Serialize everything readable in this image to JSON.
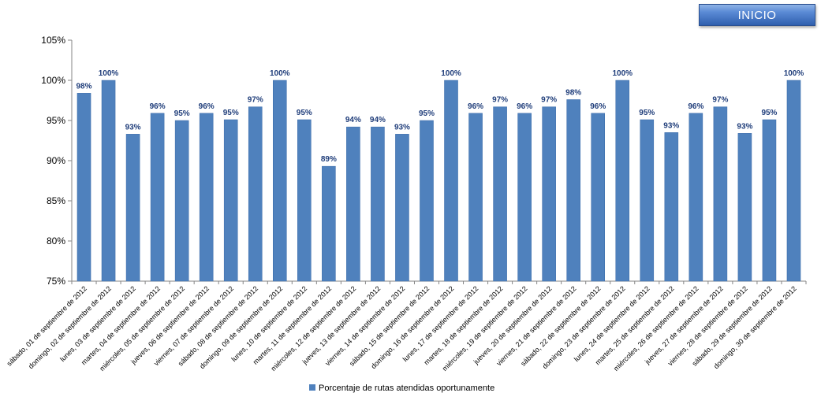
{
  "button": {
    "label": "INICIO"
  },
  "chart_data": {
    "type": "bar",
    "title": "",
    "xlabel": "",
    "ylabel": "",
    "ylim": [
      75,
      105
    ],
    "yticks": [
      "75%",
      "80%",
      "85%",
      "90%",
      "95%",
      "100%",
      "105%"
    ],
    "yticks_values": [
      75,
      80,
      85,
      90,
      95,
      100,
      105
    ],
    "grid": false,
    "legend": "bottom",
    "bar_color": "#4f81bd",
    "categories": [
      "sábado, 01 de septiembre de 2012",
      "domingo, 02 de septiembre de 2012",
      "lunes, 03 de septiembre de 2012",
      "martes, 04 de septiembre de 2012",
      "miércoles, 05 de septiembre de 2012",
      "jueves, 06 de septiembre de 2012",
      "viernes, 07 de septiembre de 2012",
      "sábado, 08 de septiembre de 2012",
      "domingo, 09 de septiembre de 2012",
      "lunes, 10 de septiembre de 2012",
      "martes, 11 de septiembre de 2012",
      "miércoles, 12 de septiembre de 2012",
      "jueves, 13 de septiembre de 2012",
      "viernes, 14 de septiembre de 2012",
      "sábado, 15 de septiembre de 2012",
      "domingo, 16 de septiembre de 2012",
      "lunes, 17 de septiembre de 2012",
      "martes, 18 de septiembre de 2012",
      "miércoles, 19 de septiembre de 2012",
      "jueves, 20 de septiembre de 2012",
      "viernes, 21 de septiembre de 2012",
      "sábado, 22 de septiembre de 2012",
      "domingo, 23 de septiembre de 2012",
      "lunes, 24 de septiembre de 2012",
      "martes, 25 de septiembre de 2012",
      "miércoles, 26 de septiembre de 2012",
      "jueves, 27 de septiembre de 2012",
      "viernes, 28 de septiembre de 2012",
      "sábado, 29 de septiembre de 2012",
      "domingo, 30 de septiembre de 2012"
    ],
    "series": [
      {
        "name": "Porcentaje de rutas atendidas oportunamente",
        "values": [
          98.4,
          100,
          93.3,
          95.9,
          95.0,
          95.9,
          95.1,
          96.7,
          100,
          95.1,
          89.3,
          94.2,
          94.2,
          93.3,
          95.0,
          100,
          95.9,
          96.7,
          95.9,
          96.7,
          97.6,
          95.9,
          100,
          95.1,
          93.5,
          95.9,
          96.7,
          93.4,
          95.1,
          100
        ],
        "data_labels": [
          "98%",
          "100%",
          "93%",
          "96%",
          "95%",
          "96%",
          "95%",
          "97%",
          "100%",
          "95%",
          "89%",
          "94%",
          "94%",
          "93%",
          "95%",
          "100%",
          "96%",
          "97%",
          "96%",
          "97%",
          "98%",
          "96%",
          "100%",
          "95%",
          "93%",
          "96%",
          "97%",
          "93%",
          "95%",
          "100%"
        ]
      }
    ]
  }
}
